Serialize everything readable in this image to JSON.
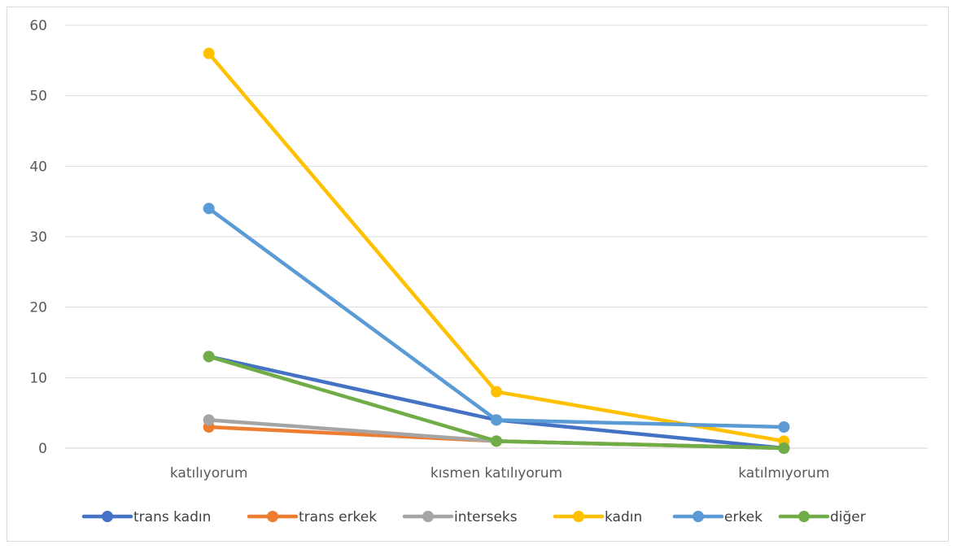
{
  "chart_data": {
    "type": "line",
    "categories": [
      "katılıyorum",
      "kısmen katılıyorum",
      "katılmıyorum"
    ],
    "ylim": [
      0,
      60
    ],
    "yticks": [
      0,
      10,
      20,
      30,
      40,
      50,
      60
    ],
    "grid": true,
    "legend_position": "bottom",
    "series": [
      {
        "name": "trans kadın",
        "color": "#4472C4",
        "values": [
          13,
          4,
          0
        ]
      },
      {
        "name": "trans erkek",
        "color": "#ED7D31",
        "values": [
          3,
          1,
          0
        ]
      },
      {
        "name": "interseks",
        "color": "#A5A5A5",
        "values": [
          4,
          1,
          0
        ]
      },
      {
        "name": "kadın",
        "color": "#FFC000",
        "values": [
          56,
          8,
          1
        ]
      },
      {
        "name": "erkek",
        "color": "#5B9BD5",
        "values": [
          34,
          4,
          3
        ]
      },
      {
        "name": "diğer",
        "color": "#70AD47",
        "values": [
          13,
          1,
          0
        ]
      }
    ]
  }
}
